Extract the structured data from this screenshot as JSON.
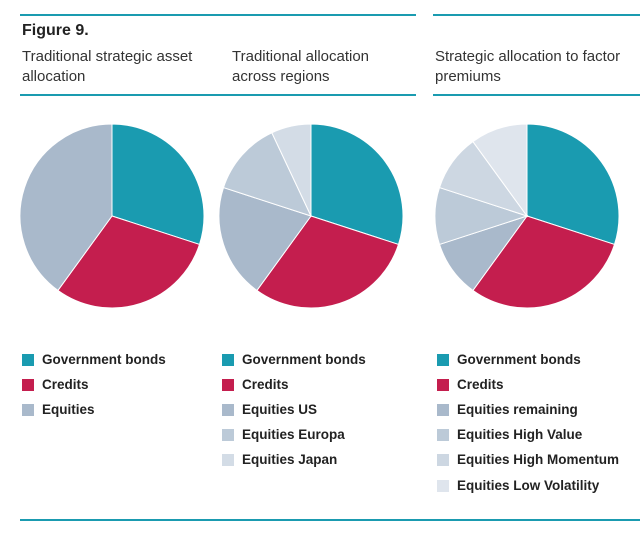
{
  "figure": "Figure 9.",
  "chart_data": [
    {
      "type": "pie",
      "title": "Traditional strategic asset allocation",
      "categories": [
        "Government bonds",
        "Credits",
        "Equities"
      ],
      "values": [
        30,
        30,
        40
      ],
      "colors": [
        "#1a9bb0",
        "#c41e4e",
        "#a9b9cb"
      ]
    },
    {
      "type": "pie",
      "title": "Traditional allocation across regions",
      "categories": [
        "Government bonds",
        "Credits",
        "Equities US",
        "Equities Europa",
        "Equities Japan"
      ],
      "values": [
        30,
        30,
        20,
        13,
        7
      ],
      "colors": [
        "#1a9bb0",
        "#c41e4e",
        "#a9b9cb",
        "#bccad8",
        "#d3dce6"
      ]
    },
    {
      "type": "pie",
      "title": "Strategic allocation to factor premiums",
      "categories": [
        "Government bonds",
        "Credits",
        "Equities remaining",
        "Equities High Value",
        "Equities High Momentum",
        "Equities Low Volatility"
      ],
      "values": [
        30,
        30,
        10,
        10,
        10,
        10
      ],
      "colors": [
        "#1a9bb0",
        "#c41e4e",
        "#a9b9cb",
        "#bccad8",
        "#cdd7e2",
        "#dfe5ed"
      ]
    }
  ]
}
